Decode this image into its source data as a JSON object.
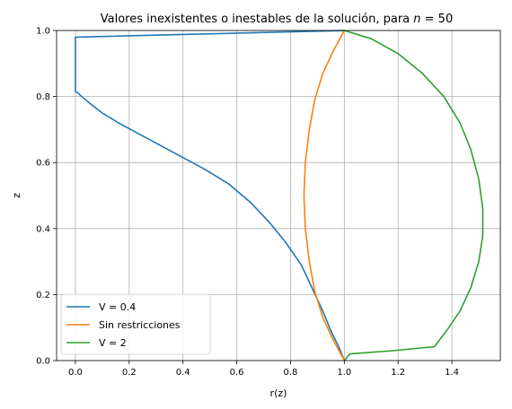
{
  "chart_data": {
    "type": "line",
    "title": "Valores inexistentes o inestables de la solución, para n = 50",
    "title_prefix": "Valores inexistentes o inestables de la solución, para ",
    "title_var": "n",
    "title_suffix": " = 50",
    "xlabel": "r(z)",
    "ylabel": "z",
    "xlim": [
      -0.07,
      1.58
    ],
    "ylim": [
      0.0,
      1.0
    ],
    "xticks": [
      0.0,
      0.2,
      0.4,
      0.6,
      0.8,
      1.0,
      1.2,
      1.4
    ],
    "xtick_labels": [
      "0.0",
      "0.2",
      "0.4",
      "0.6",
      "0.8",
      "1.0",
      "1.2",
      "1.4"
    ],
    "yticks": [
      0.0,
      0.2,
      0.4,
      0.6,
      0.8,
      1.0
    ],
    "ytick_labels": [
      "0.0",
      "0.2",
      "0.4",
      "0.6",
      "0.8",
      "1.0"
    ],
    "grid": true,
    "legend_position": "lower-left",
    "series": [
      {
        "name": "V = 0.4",
        "color": "#1f77b4",
        "x": [
          1.0,
          0.98,
          0.95,
          0.92,
          0.88,
          0.84,
          0.78,
          0.72,
          0.65,
          0.57,
          0.48,
          0.4,
          0.32,
          0.24,
          0.16,
          0.1,
          0.06,
          0.03,
          0.01,
          0.0,
          0.0,
          0.0,
          0.0,
          1.0
        ],
        "y": [
          0.0,
          0.04,
          0.09,
          0.15,
          0.22,
          0.29,
          0.36,
          0.42,
          0.48,
          0.535,
          0.58,
          0.615,
          0.65,
          0.685,
          0.72,
          0.75,
          0.775,
          0.795,
          0.81,
          0.815,
          0.9,
          0.95,
          0.98,
          1.0
        ]
      },
      {
        "name": "Sin restricciones",
        "color": "#ff7f0e",
        "x": [
          1.0,
          0.96,
          0.92,
          0.89,
          0.87,
          0.855,
          0.85,
          0.855,
          0.87,
          0.89,
          0.92,
          0.96,
          1.0
        ],
        "y": [
          0.0,
          0.06,
          0.13,
          0.21,
          0.3,
          0.4,
          0.5,
          0.6,
          0.7,
          0.79,
          0.87,
          0.94,
          1.0
        ]
      },
      {
        "name": "V = 2",
        "color": "#2ca02c",
        "x": [
          1.0,
          1.02,
          1.18,
          1.335,
          1.38,
          1.43,
          1.47,
          1.5,
          1.515,
          1.515,
          1.5,
          1.47,
          1.43,
          1.37,
          1.29,
          1.2,
          1.1,
          1.0
        ],
        "y": [
          0.0,
          0.02,
          0.03,
          0.042,
          0.09,
          0.15,
          0.22,
          0.3,
          0.38,
          0.46,
          0.55,
          0.64,
          0.72,
          0.8,
          0.87,
          0.93,
          0.975,
          1.0
        ]
      }
    ]
  }
}
